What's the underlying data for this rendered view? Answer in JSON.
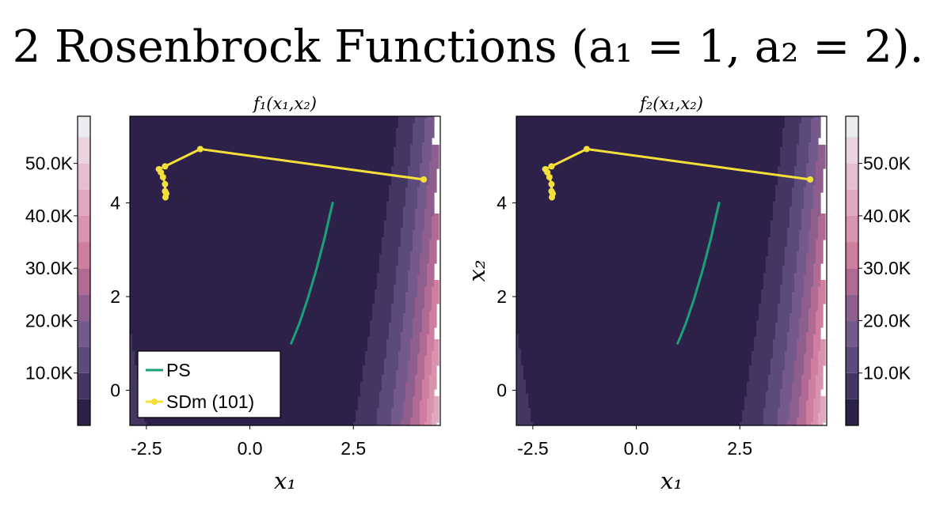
{
  "figure": {
    "title": "2 Rosenbrock Functions (a₁ = 1, a₂ = 2)."
  },
  "colorbar": {
    "tick_labels": [
      "10.0K",
      "20.0K",
      "30.0K",
      "40.0K",
      "50.0K"
    ],
    "levels": [
      0,
      5000,
      10000,
      15000,
      20000,
      25000,
      30000,
      35000,
      40000,
      45000,
      50000,
      55000,
      59000
    ],
    "colors": [
      "#2e2149",
      "#453562",
      "#5c4a7c",
      "#745a8c",
      "#8e5e8e",
      "#b06a94",
      "#d07ea0",
      "#d893ae",
      "#dfa8bf",
      "#e4bed0",
      "#e9d3df",
      "#ececf0"
    ]
  },
  "legend": {
    "items": [
      {
        "label": "PS",
        "color": "#1aa17a",
        "marker": "none"
      },
      {
        "label": "SDm (101)",
        "color": "#f4e03a",
        "marker": "circle"
      }
    ]
  },
  "chart_data": [
    {
      "type": "line",
      "title": "f₁(x₁,x₂)",
      "xlabel": "x₁",
      "ylabel": "",
      "xlim": [
        -2.9,
        4.6
      ],
      "ylim": [
        -0.75,
        5.85
      ],
      "xticks": [
        -2.5,
        0.0,
        2.5
      ],
      "xtick_labels": [
        "-2.5",
        "0.0",
        "2.5"
      ],
      "yticks": [
        0,
        2,
        4
      ],
      "ytick_labels": [
        "0",
        "2",
        "4"
      ],
      "background": "contour of f₁ = (a₁ - x₁)² + 100 (x₂ - x₁²)²",
      "series": [
        {
          "name": "PS",
          "x": [
            1.0,
            1.2,
            1.4,
            1.6,
            1.8,
            2.0
          ],
          "y": [
            1.0,
            1.44,
            1.96,
            2.56,
            3.24,
            4.0
          ]
        },
        {
          "name": "SDm (101)",
          "x": [
            4.2,
            -1.2,
            -2.05,
            -2.2,
            -2.15,
            -2.1,
            -2.05,
            -2.05,
            -2.02,
            -2.04
          ],
          "y": [
            4.5,
            5.15,
            4.78,
            4.72,
            4.65,
            4.55,
            4.4,
            4.25,
            4.2,
            4.12
          ]
        }
      ]
    },
    {
      "type": "line",
      "title": "f₂(x₁,x₂)",
      "xlabel": "x₁",
      "ylabel": "x₂",
      "xlim": [
        -2.9,
        4.6
      ],
      "ylim": [
        -0.75,
        5.85
      ],
      "xticks": [
        -2.5,
        0.0,
        2.5
      ],
      "xtick_labels": [
        "-2.5",
        "0.0",
        "2.5"
      ],
      "yticks": [
        0,
        2,
        4
      ],
      "ytick_labels": [
        "0",
        "2",
        "4"
      ],
      "background": "contour of f₂ = (a₂ - x₁)² + 100 (x₂ - x₁²)²",
      "series": [
        {
          "name": "PS",
          "x": [
            1.0,
            1.2,
            1.4,
            1.6,
            1.8,
            2.0
          ],
          "y": [
            1.0,
            1.44,
            1.96,
            2.56,
            3.24,
            4.0
          ]
        },
        {
          "name": "SDm (101)",
          "x": [
            4.2,
            -1.2,
            -2.05,
            -2.2,
            -2.15,
            -2.1,
            -2.05,
            -2.05,
            -2.02,
            -2.04
          ],
          "y": [
            4.5,
            5.15,
            4.78,
            4.72,
            4.65,
            4.55,
            4.4,
            4.25,
            4.2,
            4.12
          ]
        }
      ]
    }
  ]
}
